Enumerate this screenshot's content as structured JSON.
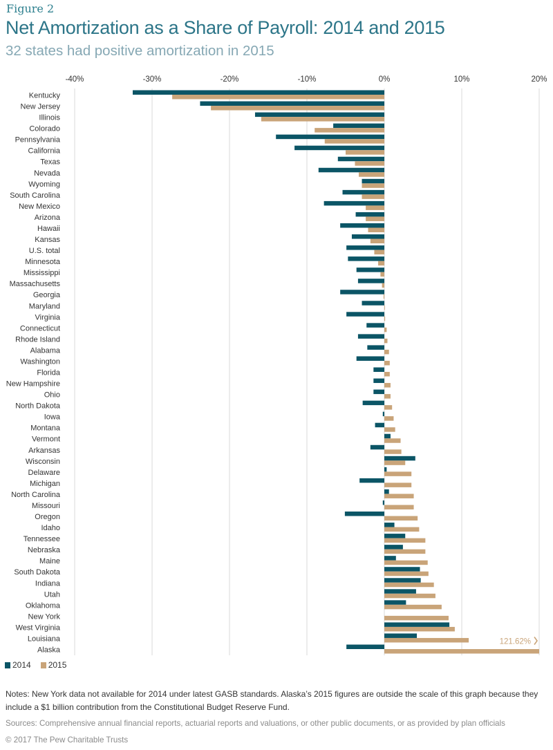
{
  "figure_label": "Figure 2",
  "title": "Net Amortization as a Share of Payroll: 2014 and 2015",
  "subtitle": "32 states had positive amortization in 2015",
  "chart_data": {
    "type": "bar",
    "orientation": "horizontal",
    "title": "Net Amortization as a Share of Payroll: 2014 and 2015",
    "subtitle": "32 states had positive amortization in 2015",
    "xlabel": "",
    "ylabel": "",
    "xlim": [
      -40,
      20
    ],
    "x_ticks": [
      -40,
      -30,
      -20,
      -10,
      0,
      10,
      20
    ],
    "x_tick_labels": [
      "-40%",
      "-30%",
      "-20%",
      "-10%",
      "0%",
      "10%",
      "20%"
    ],
    "grid": true,
    "legend_position": "bottom-left",
    "colors": {
      "2014": "#0b5566",
      "2015": "#c9a479"
    },
    "categories": [
      "Kentucky",
      "New Jersey",
      "Illinois",
      "Colorado",
      "Pennsylvania",
      "California",
      "Texas",
      "Nevada",
      "Wyoming",
      "South Carolina",
      "New Mexico",
      "Arizona",
      "Hawaii",
      "Kansas",
      "U.S. total",
      "Minnesota",
      "Mississippi",
      "Massachusetts",
      "Georgia",
      "Maryland",
      "Virginia",
      "Connecticut",
      "Rhode Island",
      "Alabama",
      "Washington",
      "Florida",
      "New Hampshire",
      "Ohio",
      "North Dakota",
      "Iowa",
      "Montana",
      "Vermont",
      "Arkansas",
      "Wisconsin",
      "Delaware",
      "Michigan",
      "North Carolina",
      "Missouri",
      "Oregon",
      "Idaho",
      "Tennessee",
      "Nebraska",
      "Maine",
      "South Dakota",
      "Indiana",
      "Utah",
      "Oklahoma",
      "New York",
      "West Virginia",
      "Louisiana",
      "Alaska"
    ],
    "series": [
      {
        "name": "2014",
        "values": [
          -32.5,
          -23.8,
          -16.7,
          -6.6,
          -14.0,
          -11.6,
          -6.0,
          -8.5,
          -2.9,
          -5.4,
          -7.8,
          -3.7,
          -5.7,
          -4.2,
          -4.9,
          -4.7,
          -3.6,
          -3.4,
          -5.7,
          -2.9,
          -4.9,
          -2.3,
          -3.4,
          -2.2,
          -3.6,
          -1.4,
          -1.4,
          -1.4,
          -2.8,
          -0.2,
          -1.2,
          0.8,
          -1.8,
          4.0,
          0.3,
          -3.2,
          0.6,
          -0.2,
          -5.1,
          1.3,
          2.7,
          2.4,
          1.5,
          4.6,
          4.7,
          4.1,
          2.8,
          null,
          8.4,
          4.2,
          -4.9
        ]
      },
      {
        "name": "2015",
        "values": [
          -27.4,
          -22.4,
          -15.9,
          -9.0,
          -7.7,
          -5.0,
          -3.8,
          -3.3,
          -2.9,
          -2.9,
          -2.4,
          -2.4,
          -2.1,
          -1.8,
          -1.3,
          -0.8,
          -0.5,
          -0.3,
          -0.1,
          0.05,
          0.1,
          0.3,
          0.4,
          0.6,
          0.7,
          0.7,
          0.8,
          0.8,
          1.0,
          1.2,
          1.4,
          2.1,
          2.2,
          2.7,
          3.5,
          3.5,
          3.8,
          3.8,
          4.3,
          4.5,
          5.3,
          5.3,
          5.6,
          5.7,
          6.4,
          6.6,
          7.4,
          8.3,
          9.1,
          10.9,
          121.62
        ]
      }
    ],
    "annotations": [
      {
        "category": "Alaska",
        "series": "2015",
        "text": "121.62%",
        "note": "value outside scale, bar clipped at axis maximum"
      }
    ]
  },
  "legend": [
    {
      "label": "2014",
      "color": "#0b5566"
    },
    {
      "label": "2015",
      "color": "#c9a479"
    }
  ],
  "notes": "Notes: New York data not available for 2014 under latest GASB standards. Alaska’s 2015 figures are outside the scale of this graph because they include a $1 billion contribution from the Constitutional Budget Reserve Fund.",
  "sources": "Sources: Comprehensive annual financial reports, actuarial reports and valuations, or other public documents, or as provided by plan officials",
  "copyright": "© 2017 The Pew Charitable Trusts"
}
